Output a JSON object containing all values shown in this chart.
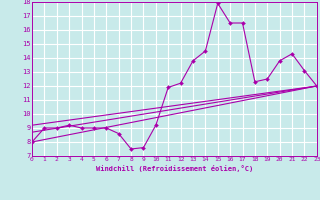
{
  "xlabel": "Windchill (Refroidissement éolien,°C)",
  "xlim": [
    0,
    23
  ],
  "ylim": [
    7,
    18
  ],
  "xticks": [
    0,
    1,
    2,
    3,
    4,
    5,
    6,
    7,
    8,
    9,
    10,
    11,
    12,
    13,
    14,
    15,
    16,
    17,
    18,
    19,
    20,
    21,
    22,
    23
  ],
  "yticks": [
    7,
    8,
    9,
    10,
    11,
    12,
    13,
    14,
    15,
    16,
    17,
    18
  ],
  "bg_color": "#c8eaea",
  "grid_color": "#ffffff",
  "line_color": "#aa00aa",
  "line1_x": [
    0,
    1,
    2,
    3,
    4,
    5,
    6,
    7,
    8,
    9,
    10,
    11,
    12,
    13,
    14,
    15,
    16,
    17,
    18,
    19,
    20,
    21,
    22,
    23
  ],
  "line1_y": [
    8.0,
    9.0,
    9.0,
    9.2,
    9.0,
    9.0,
    9.0,
    8.6,
    7.5,
    7.6,
    9.2,
    11.9,
    12.2,
    13.8,
    14.5,
    17.9,
    16.5,
    16.5,
    12.3,
    12.5,
    13.8,
    14.3,
    13.1,
    12.0
  ],
  "line2_x": [
    0,
    23
  ],
  "line2_y": [
    8.0,
    12.0
  ],
  "line3_x": [
    0,
    23
  ],
  "line3_y": [
    8.7,
    12.0
  ],
  "line4_x": [
    0,
    23
  ],
  "line4_y": [
    9.2,
    12.0
  ]
}
